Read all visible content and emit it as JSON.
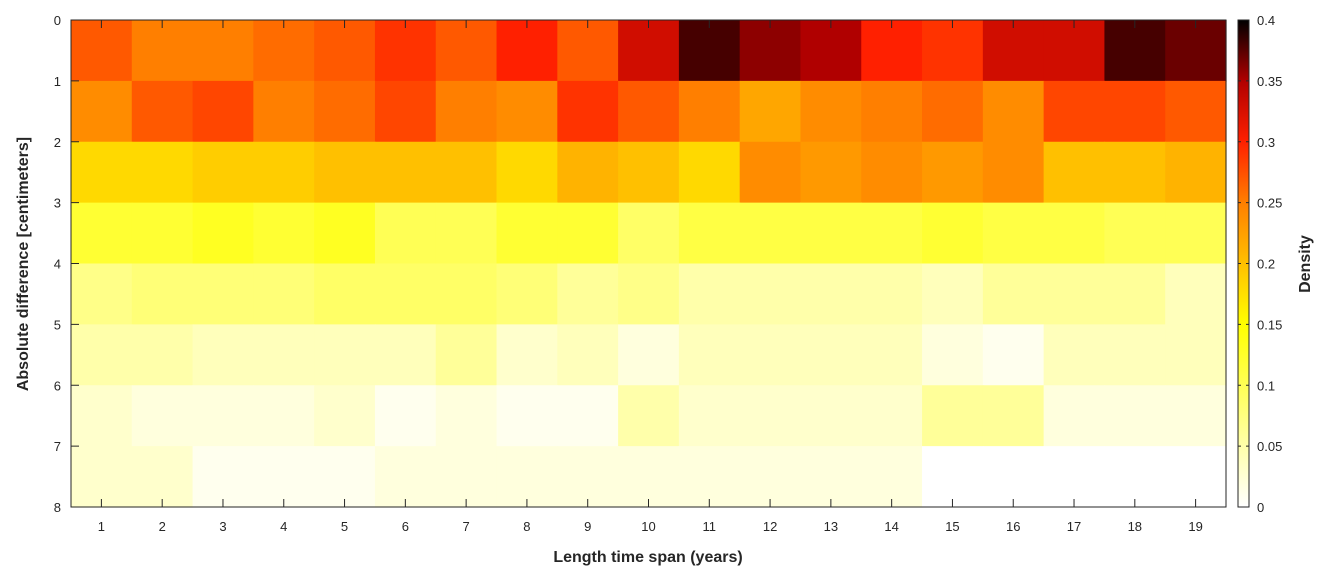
{
  "chart_data": {
    "type": "heatmap",
    "title": "",
    "xlabel": "Length time span (years)",
    "ylabel": "Absolute difference [centimeters]",
    "colorbar_label": "Density",
    "x": [
      1,
      2,
      3,
      4,
      5,
      6,
      7,
      8,
      9,
      10,
      11,
      12,
      13,
      14,
      15,
      16,
      17,
      18,
      19
    ],
    "x_tick_labels": [
      "1",
      "2",
      "3",
      "4",
      "5",
      "6",
      "7",
      "8",
      "9",
      "10",
      "11",
      "12",
      "13",
      "14",
      "15",
      "16",
      "17",
      "18",
      "19"
    ],
    "y_bins": [
      [
        0,
        1
      ],
      [
        1,
        2
      ],
      [
        2,
        3
      ],
      [
        3,
        4
      ],
      [
        4,
        5
      ],
      [
        5,
        6
      ],
      [
        6,
        7
      ],
      [
        7,
        8
      ]
    ],
    "y_tick_labels": [
      "0",
      "1",
      "2",
      "3",
      "4",
      "5",
      "6",
      "7",
      "8"
    ],
    "ylim": [
      0,
      8
    ],
    "y_reversed": true,
    "colorbar_ticks": [
      "0",
      "0.05",
      "0.1",
      "0.15",
      "0.2",
      "0.25",
      "0.3",
      "0.35",
      "0.4"
    ],
    "clim": [
      0,
      0.4
    ],
    "colormap": "hot (reversed)",
    "values": [
      [
        0.27,
        0.25,
        0.25,
        0.26,
        0.27,
        0.29,
        0.27,
        0.3,
        0.27,
        0.33,
        0.38,
        0.36,
        0.35,
        0.3,
        0.29,
        0.33,
        0.33,
        0.38,
        0.37
      ],
      [
        0.24,
        0.27,
        0.28,
        0.25,
        0.26,
        0.28,
        0.25,
        0.24,
        0.29,
        0.27,
        0.25,
        0.22,
        0.24,
        0.25,
        0.26,
        0.24,
        0.28,
        0.28,
        0.27
      ],
      [
        0.18,
        0.18,
        0.19,
        0.19,
        0.2,
        0.2,
        0.2,
        0.18,
        0.21,
        0.2,
        0.18,
        0.24,
        0.23,
        0.24,
        0.23,
        0.24,
        0.2,
        0.2,
        0.21
      ],
      [
        0.12,
        0.12,
        0.13,
        0.12,
        0.13,
        0.1,
        0.1,
        0.12,
        0.12,
        0.09,
        0.11,
        0.11,
        0.11,
        0.11,
        0.12,
        0.11,
        0.11,
        0.1,
        0.1
      ],
      [
        0.07,
        0.08,
        0.08,
        0.08,
        0.09,
        0.09,
        0.09,
        0.08,
        0.06,
        0.07,
        0.05,
        0.05,
        0.05,
        0.05,
        0.04,
        0.06,
        0.06,
        0.06,
        0.04
      ],
      [
        0.05,
        0.05,
        0.04,
        0.04,
        0.04,
        0.04,
        0.06,
        0.03,
        0.04,
        0.02,
        0.04,
        0.04,
        0.04,
        0.04,
        0.02,
        0.01,
        0.04,
        0.04,
        0.04
      ],
      [
        0.03,
        0.02,
        0.02,
        0.02,
        0.03,
        0.01,
        0.02,
        0.01,
        0.01,
        0.05,
        0.03,
        0.03,
        0.03,
        0.03,
        0.06,
        0.06,
        0.02,
        0.02,
        0.02
      ],
      [
        0.03,
        0.03,
        0.01,
        0.01,
        0.01,
        0.02,
        0.02,
        0.02,
        0.02,
        0.02,
        0.02,
        0.02,
        0.02,
        0.02,
        0.0,
        0.0,
        0.0,
        0.0,
        0.0
      ]
    ]
  }
}
